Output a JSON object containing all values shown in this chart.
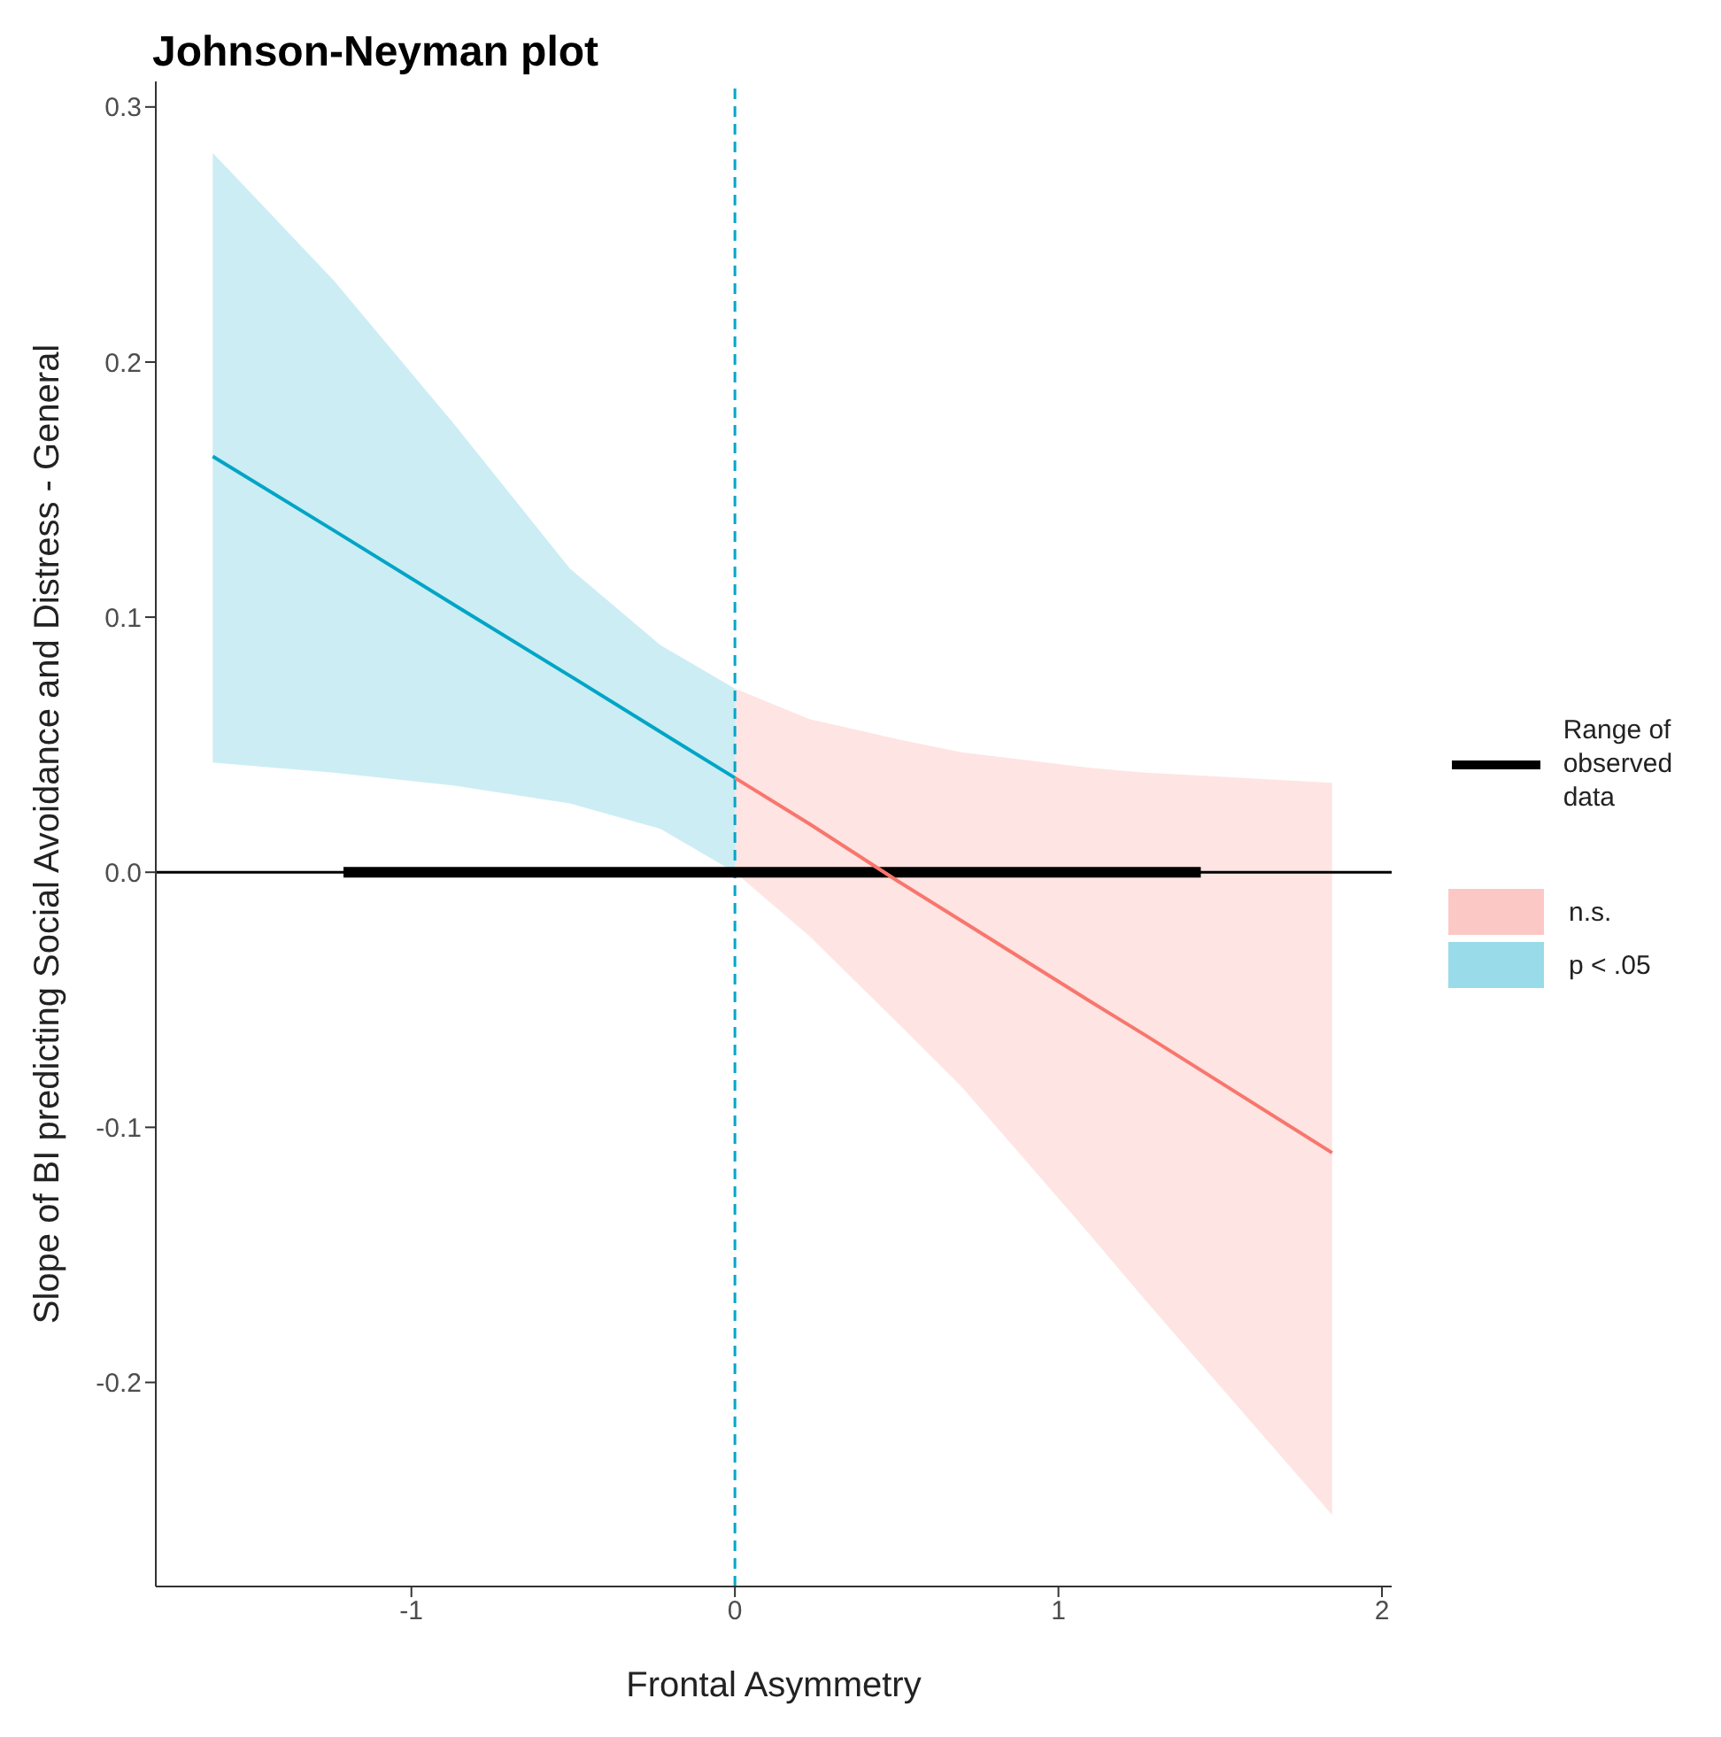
{
  "chart_data": {
    "type": "line",
    "title": "Johnson-Neyman plot",
    "xlabel": "Frontal Asymmetry",
    "ylabel": "Slope of BI predicting Social Avoidance and Distress - General",
    "xlim": [
      -1.79,
      2.03
    ],
    "xticks": [
      -1,
      0,
      1,
      2
    ],
    "ylim": [
      -0.28,
      0.31
    ],
    "yticks": [
      -0.2,
      -0.1,
      {
        "value": 0,
        "label": "0.0"
      },
      0.1,
      0.2,
      0.3
    ],
    "legend": "right",
    "marker": "none",
    "ref_lines": [
      {
        "axis": "y",
        "value": 0,
        "color": "#000000",
        "line_style": "solid"
      },
      {
        "axis": "x",
        "value": 0,
        "color": "#00a6c8",
        "line_style": "dashed"
      }
    ],
    "series": [
      {
        "name": "Range of observed data",
        "color": "#000000",
        "x": [
          -1.21,
          1.44
        ],
        "values": [
          0,
          0
        ]
      },
      {
        "name": "n.s.",
        "color": "#f8766d",
        "x": [
          0,
          0.23,
          0.51,
          0.7,
          1.09,
          1.27,
          1.846
        ],
        "values": [
          0.037,
          0.019,
          -0.004,
          -0.019,
          -0.05,
          -0.064,
          -0.11
        ],
        "lower": [
          0.0,
          -0.025,
          -0.06,
          -0.084,
          -0.141,
          -0.168,
          -0.252
        ],
        "upper": [
          0.072,
          0.06,
          0.052,
          0.047,
          0.041,
          0.039,
          0.035
        ]
      },
      {
        "name": "p < .05",
        "color": "#00a5c6",
        "x": [
          -1.614,
          -1.24,
          -0.87,
          -0.51,
          -0.23,
          0
        ],
        "values": [
          0.163,
          0.134,
          0.105,
          0.077,
          0.055,
          0.037
        ],
        "lower": [
          0.043,
          0.039,
          0.034,
          0.027,
          0.017,
          0.0
        ],
        "upper": [
          0.282,
          0.232,
          0.176,
          0.119,
          0.089,
          0.072
        ]
      }
    ]
  }
}
